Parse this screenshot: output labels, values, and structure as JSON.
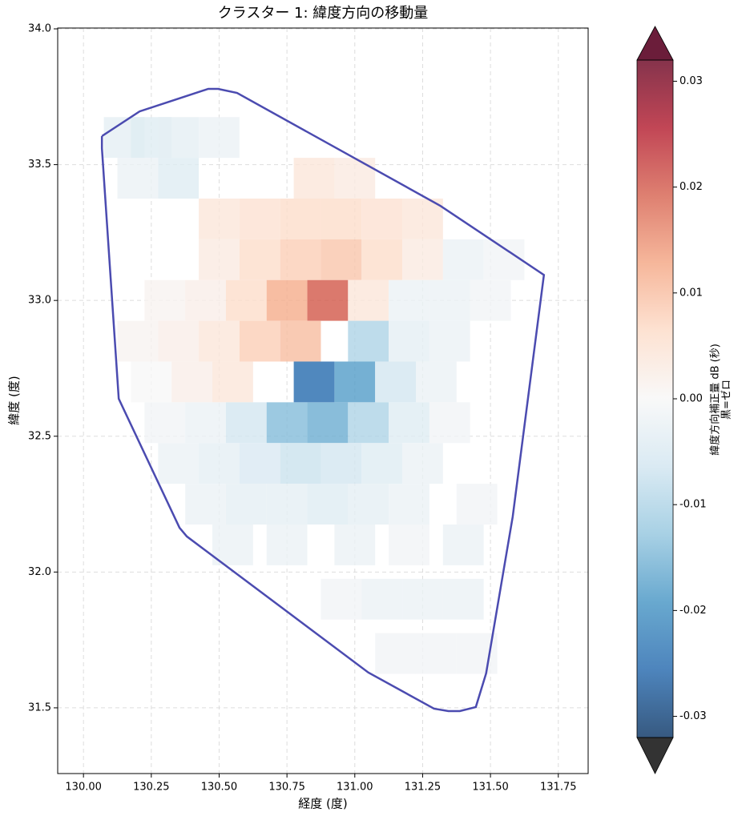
{
  "chart_data": {
    "type": "scatter",
    "title": "クラスター 1: 緯度方向の移動量",
    "x_label": "経度 (度)",
    "y_label": "緯度 (度)",
    "xlim": [
      129.905,
      131.86
    ],
    "ylim": [
      31.258,
      34.003
    ],
    "xticks": [
      {
        "value": 130,
        "label": "130.00"
      },
      130.25,
      {
        "value": 130.5,
        "label": "130.50"
      },
      130.75,
      {
        "value": 131,
        "label": "131.00"
      },
      131.25,
      {
        "value": 131.5,
        "label": "131.50"
      },
      131.75
    ],
    "yticks": [
      {
        "value": 34,
        "label": "34.0"
      },
      33.5,
      {
        "value": 33,
        "label": "33.0"
      },
      32.5,
      {
        "value": 32,
        "label": "32.0"
      },
      31.5
    ],
    "grid": true,
    "x": [
      130.15,
      130.25,
      130.35,
      130.5,
      130.2,
      130.35,
      130.85,
      131.0,
      130.5,
      130.65,
      130.8,
      130.95,
      131.1,
      131.25,
      130.5,
      130.65,
      130.8,
      130.95,
      131.1,
      131.25,
      131.4,
      131.55,
      130.3,
      130.45,
      130.6,
      130.75,
      130.9,
      131.05,
      131.2,
      131.35,
      131.5,
      130.2,
      130.35,
      130.5,
      130.65,
      130.8,
      131.05,
      131.2,
      131.35,
      130.25,
      130.4,
      130.55,
      130.85,
      131.0,
      131.15,
      131.3,
      130.3,
      130.45,
      130.6,
      130.75,
      130.9,
      131.05,
      131.2,
      131.35,
      130.35,
      130.5,
      130.65,
      130.8,
      130.95,
      131.1,
      131.25,
      130.45,
      130.6,
      130.75,
      130.9,
      131.05,
      131.2,
      131.45,
      130.55,
      130.75,
      131.0,
      131.2,
      131.4,
      130.95,
      131.1,
      131.25,
      131.4,
      131.15,
      131.3,
      131.45
    ],
    "y": [
      33.6,
      33.6,
      33.6,
      33.6,
      33.45,
      33.45,
      33.45,
      33.45,
      33.3,
      33.3,
      33.3,
      33.3,
      33.3,
      33.3,
      33.15,
      33.15,
      33.15,
      33.15,
      33.15,
      33.15,
      33.15,
      33.15,
      33.0,
      33.0,
      33.0,
      33.0,
      33.0,
      33.0,
      33.0,
      33.0,
      33.0,
      32.85,
      32.85,
      32.85,
      32.85,
      32.85,
      32.85,
      32.85,
      32.85,
      32.7,
      32.7,
      32.7,
      32.7,
      32.7,
      32.7,
      32.7,
      32.55,
      32.55,
      32.55,
      32.55,
      32.55,
      32.55,
      32.55,
      32.55,
      32.4,
      32.4,
      32.4,
      32.4,
      32.4,
      32.4,
      32.4,
      32.25,
      32.25,
      32.25,
      32.25,
      32.25,
      32.25,
      32.25,
      32.1,
      32.1,
      32.1,
      32.1,
      32.1,
      31.9,
      31.9,
      31.9,
      31.9,
      31.7,
      31.7,
      31.7
    ],
    "values": [
      -0.003,
      -0.004,
      -0.003,
      -0.002,
      -0.002,
      -0.004,
      0.004,
      0.003,
      0.004,
      0.005,
      0.006,
      0.006,
      0.005,
      0.004,
      0.003,
      0.006,
      0.008,
      0.009,
      0.006,
      0.003,
      -0.002,
      -0.001,
      0.001,
      0.002,
      0.006,
      0.012,
      0.02,
      0.004,
      -0.002,
      -0.002,
      -0.001,
      0.001,
      0.002,
      0.004,
      0.008,
      0.01,
      -0.01,
      -0.003,
      -0.002,
      0,
      0.002,
      0.004,
      -0.025,
      -0.018,
      -0.006,
      -0.002,
      -0.001,
      -0.002,
      -0.006,
      -0.014,
      -0.016,
      -0.01,
      -0.004,
      -0.001,
      -0.002,
      -0.003,
      -0.005,
      -0.007,
      -0.006,
      -0.004,
      -0.002,
      -0.002,
      -0.003,
      -0.003,
      -0.004,
      -0.003,
      -0.002,
      -0.001,
      -0.002,
      -0.002,
      -0.002,
      -0.001,
      -0.002,
      -0.001,
      -0.002,
      -0.002,
      -0.002,
      -0.001,
      -0.001,
      -0.001
    ],
    "boundary": {
      "color": "#4b4bb0",
      "x": [
        130.068,
        130.207,
        130.46,
        130.496,
        130.566,
        131.316,
        131.697,
        131.582,
        131.484,
        131.446,
        131.387,
        131.345,
        131.292,
        131.05,
        130.381,
        130.354,
        130.13,
        130.068,
        130.068
      ],
      "y": [
        33.605,
        33.696,
        33.779,
        33.779,
        33.764,
        33.348,
        33.094,
        32.204,
        31.627,
        31.503,
        31.488,
        31.488,
        31.497,
        31.63,
        32.131,
        32.163,
        32.638,
        33.56,
        33.605
      ]
    },
    "colorbar": {
      "label": "緯度方向補正量 dB (秒)",
      "sublabel": "黒=ゼロ",
      "clim": [
        -0.032,
        0.032
      ],
      "ticks": [
        0.03,
        0.02,
        0.01,
        {
          "value": 0,
          "label": "0.00"
        },
        -0.01,
        -0.02,
        -0.03
      ],
      "colormap": [
        "#053061",
        "#2166ac",
        "#4393c3",
        "#92c5de",
        "#d1e5f0",
        "#f7f7f7",
        "#fddbc7",
        "#f4a582",
        "#d6604d",
        "#b2182b",
        "#67001f"
      ],
      "over_color": "#6b1d3a",
      "under_color": "#333333"
    }
  }
}
